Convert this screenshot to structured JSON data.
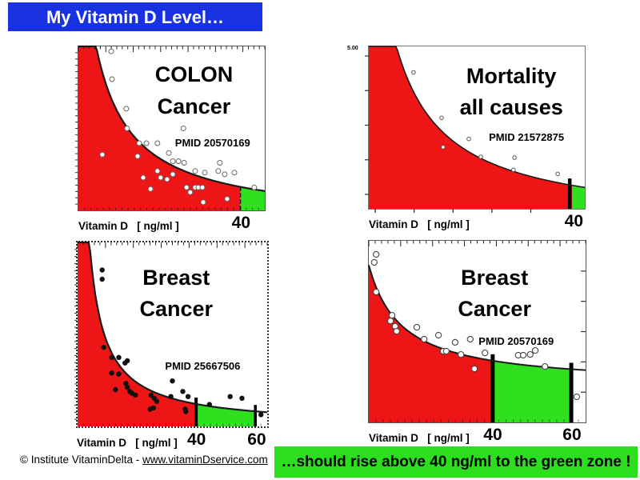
{
  "slide": {
    "banner": {
      "text": "My Vitamin D Level…"
    },
    "footer": {
      "prefix": "© Institute VitaminDelta - ",
      "link": "www.vitaminDservice.com"
    },
    "callout": {
      "text": "…should rise above 40 ng/ml to the green zone !"
    }
  },
  "colors": {
    "banner_blue": "#1832e2",
    "banner_text": "#ffffff",
    "risk_red": "#ee1517",
    "zone_green": "#2ee01e",
    "callout_green": "#2bdf1e",
    "curve_black": "#1a1a1a"
  },
  "chart_data": [
    {
      "type": "scatter",
      "title_lines": [
        "COLON",
        "Cancer"
      ],
      "pmid": "PMID 20570169",
      "xlabel": "Vitamin D   [ ng/ml ]",
      "x_unit": "ng/ml",
      "y_axis": "relative risk (unlabeled, normalized 0–1)",
      "x_range": [
        0,
        46
      ],
      "x_tick_labels": [
        {
          "text": "40",
          "x": 40
        }
      ],
      "threshold_bars": [
        {
          "x": 40,
          "style": "dashed",
          "width": 1.5
        }
      ],
      "green_zone": {
        "from": 40,
        "to": 46
      },
      "red_zone": {
        "from": 0,
        "to": 40
      },
      "curve_fit": {
        "formula": "y = a/(x+b)+c",
        "a": 9.5,
        "b": 4.5,
        "c": -0.07
      },
      "curve_width": 2.2,
      "marker": {
        "shape": "open-circle",
        "radius": 3,
        "fill": "#ffffff",
        "stroke": "#666666",
        "stroke_width": 1
      },
      "ticks": {
        "top": "ruler",
        "left": "dense-out",
        "bottom": "dense-in"
      },
      "points": [
        [
          8.1,
          0.97
        ],
        [
          8.3,
          0.8
        ],
        [
          11.8,
          0.62
        ],
        [
          12.0,
          0.5
        ],
        [
          15.0,
          0.41
        ],
        [
          16.8,
          0.41
        ],
        [
          19.5,
          0.41
        ],
        [
          22.3,
          0.35
        ],
        [
          23.3,
          0.3
        ],
        [
          24.7,
          0.3
        ],
        [
          26.1,
          0.29
        ],
        [
          25.9,
          0.5
        ],
        [
          28.8,
          0.24
        ],
        [
          31.2,
          0.23
        ],
        [
          34.5,
          0.24
        ],
        [
          36.1,
          0.22
        ],
        [
          38.5,
          0.23
        ],
        [
          34.9,
          0.29
        ],
        [
          43.4,
          0.14
        ],
        [
          5.9,
          0.34
        ],
        [
          14.6,
          0.33
        ],
        [
          16.0,
          0.2
        ],
        [
          17.8,
          0.13
        ],
        [
          19.5,
          0.24
        ],
        [
          20.3,
          0.2
        ],
        [
          21.9,
          0.19
        ],
        [
          23.3,
          0.22
        ],
        [
          26.7,
          0.14
        ],
        [
          27.6,
          0.11
        ],
        [
          28.8,
          0.14
        ],
        [
          29.6,
          0.14
        ],
        [
          30.6,
          0.14
        ],
        [
          30.8,
          0.05
        ],
        [
          36.7,
          0.07
        ]
      ]
    },
    {
      "type": "scatter",
      "title_lines": [
        "Mortality",
        "all causes"
      ],
      "pmid": "PMID 21572875",
      "xlabel": "Vitamin D   [ ng/ml ]",
      "x_unit": "ng/ml",
      "y_axis": "relative risk (top tick labeled 5.00)",
      "y_tick_top_label": "5.00",
      "x_range": [
        0,
        43
      ],
      "x_tick_labels": [
        {
          "text": "40",
          "x": 40.7
        }
      ],
      "threshold_bars": [
        {
          "x": 40,
          "style": "solid",
          "width": 4.5
        }
      ],
      "green_zone": {
        "from": 40.5,
        "to": 43
      },
      "red_zone": {
        "from": 0,
        "to": 40
      },
      "curve_fit": {
        "formula": "y = a/(x+b)+c",
        "a": 11,
        "b": 4.5,
        "c": -0.1
      },
      "curve_width": 1.6,
      "marker": {
        "shape": "open-circle",
        "radius": 2.3,
        "fill": "#ffffff",
        "stroke": "#555555",
        "stroke_width": 1
      },
      "ticks": {
        "left": "sparse-out",
        "bottom": "sparse-out"
      },
      "points": [
        [
          8.9,
          0.84
        ],
        [
          14.5,
          0.56
        ],
        [
          19.9,
          0.43
        ],
        [
          14.8,
          0.38
        ],
        [
          22.3,
          0.32
        ],
        [
          29.0,
          0.315
        ],
        [
          28.8,
          0.24
        ],
        [
          37.6,
          0.215
        ]
      ]
    },
    {
      "type": "scatter",
      "title_lines": [
        "Breast",
        "Cancer"
      ],
      "pmid": "PMID 25667506",
      "xlabel": "Vitamin D   [ ng/ml ]",
      "x_unit": "ng/ml",
      "y_axis": "relative risk (unlabeled, normalized 0–1)",
      "x_range": [
        0,
        64
      ],
      "x_tick_labels": [
        {
          "text": "40",
          "x": 40
        },
        {
          "text": "60",
          "x": 60
        }
      ],
      "threshold_bars": [
        {
          "x": 40,
          "style": "solid",
          "width": 4
        },
        {
          "x": 60,
          "style": "solid",
          "width": 3.5
        }
      ],
      "green_zone": {
        "from": 40,
        "to": 60
      },
      "red_zone": {
        "from": 0,
        "to": 40
      },
      "curve_fit": {
        "formula": "y = a/(x+b)+c",
        "a": 5,
        "b": 1,
        "c": 0
      },
      "curve_width": 2.2,
      "marker": {
        "shape": "filled-dot",
        "radius": 3.2,
        "fill": "#111111",
        "stroke": "none",
        "stroke_width": 0
      },
      "ticks": {
        "top": "ruler",
        "left": "dense-out",
        "bottom": "dense-in"
      },
      "points": [
        [
          8.3,
          0.85
        ],
        [
          8.3,
          0.8
        ],
        [
          8.8,
          0.43
        ],
        [
          11.5,
          0.375
        ],
        [
          13.9,
          0.375
        ],
        [
          16.0,
          0.345
        ],
        [
          16.8,
          0.357
        ],
        [
          11.5,
          0.29
        ],
        [
          13.9,
          0.285
        ],
        [
          16.3,
          0.234
        ],
        [
          16.8,
          0.213
        ],
        [
          17.6,
          0.19
        ],
        [
          18.4,
          0.18
        ],
        [
          19.5,
          0.17
        ],
        [
          12.8,
          0.2
        ],
        [
          24.8,
          0.17
        ],
        [
          25.9,
          0.153
        ],
        [
          26.7,
          0.136
        ],
        [
          25.6,
          0.1
        ],
        [
          24.5,
          0.094
        ],
        [
          32.0,
          0.247
        ],
        [
          31.5,
          0.162
        ],
        [
          35.5,
          0.19
        ],
        [
          37.3,
          0.162
        ],
        [
          36.3,
          0.094
        ],
        [
          36.5,
          0.081
        ],
        [
          44.5,
          0.119
        ],
        [
          51.5,
          0.162
        ],
        [
          55.5,
          0.153
        ],
        [
          61.9,
          0.064
        ]
      ]
    },
    {
      "type": "scatter",
      "title_lines": [
        "Breast",
        "Cancer"
      ],
      "pmid": "PMID 20570169",
      "xlabel": "Vitamin D   [ ng/ml ]",
      "x_unit": "ng/ml",
      "y_axis": "relative risk (unlabeled, normalized 0–1)",
      "x_range": [
        8,
        64
      ],
      "x_tick_labels": [
        {
          "text": "40",
          "x": 40
        },
        {
          "text": "60",
          "x": 60.3
        }
      ],
      "threshold_bars": [
        {
          "x": 40,
          "style": "solid",
          "width": 5
        },
        {
          "x": 60.3,
          "style": "solid",
          "width": 5
        }
      ],
      "green_zone": {
        "from": 40,
        "to": 60.3
      },
      "red_zone": {
        "from": 8,
        "to": 40
      },
      "curve_fit": {
        "formula": "y = a/(x+b)+c",
        "a": 5.66,
        "b": 0.5,
        "c": 0.2
      },
      "curve_width": 2,
      "marker": {
        "shape": "open-circle",
        "radius": 3.6,
        "fill": "#ffffff",
        "stroke": "#444444",
        "stroke_width": 1.1
      },
      "ticks": {
        "top": "ruler",
        "right": "sparse-in",
        "bottom": "dense-in"
      },
      "points": [
        [
          9.9,
          0.925
        ],
        [
          9.4,
          0.881
        ],
        [
          9.9,
          0.718
        ],
        [
          14.0,
          0.59
        ],
        [
          13.6,
          0.559
        ],
        [
          14.8,
          0.529
        ],
        [
          15.2,
          0.502
        ],
        [
          20.4,
          0.524
        ],
        [
          22.3,
          0.458
        ],
        [
          26.0,
          0.48
        ],
        [
          27.2,
          0.392
        ],
        [
          28.0,
          0.392
        ],
        [
          30.3,
          0.441
        ],
        [
          31.8,
          0.374
        ],
        [
          34.2,
          0.458
        ],
        [
          35.3,
          0.295
        ],
        [
          38.0,
          0.383
        ],
        [
          46.6,
          0.37
        ],
        [
          47.9,
          0.37
        ],
        [
          49.7,
          0.374
        ],
        [
          51.0,
          0.396
        ],
        [
          53.5,
          0.308
        ],
        [
          61.7,
          0.141
        ]
      ]
    }
  ]
}
